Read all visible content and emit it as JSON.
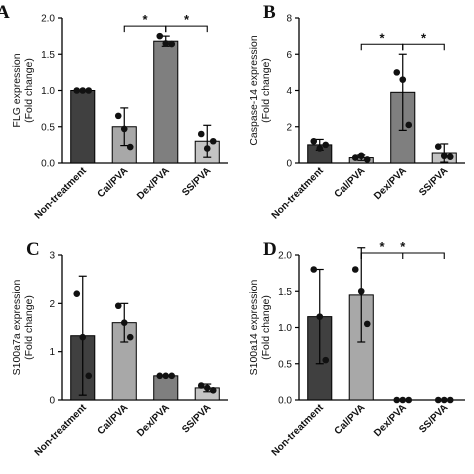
{
  "chart_data": [
    {
      "type": "bar",
      "panel": "A",
      "ylabel": [
        "FLG expression",
        "(Fold change)"
      ],
      "categories": [
        "Non-treatment",
        "Cal/PVA",
        "Dex/PVA",
        "SS/PVA"
      ],
      "colors": [
        "#404040",
        "#a8a8a8",
        "#7f7f7f",
        "#c4c4c4"
      ],
      "values": [
        1.0,
        0.5,
        1.68,
        0.3
      ],
      "errors": [
        0.0,
        0.26,
        0.07,
        0.22
      ],
      "points": [
        [
          1.0,
          1.0,
          1.0
        ],
        [
          0.65,
          0.47,
          0.22
        ],
        [
          1.75,
          1.65,
          1.64
        ],
        [
          0.4,
          0.2,
          0.3
        ]
      ],
      "ylim": [
        0,
        2
      ],
      "yticks": [
        {
          "value": 0,
          "label": "0.0"
        },
        {
          "value": 0.5,
          "label": "0.5"
        },
        {
          "value": 1,
          "label": "1.0"
        },
        {
          "value": 1.5,
          "label": "1.5"
        },
        {
          "value": 2,
          "label": "2.0"
        }
      ],
      "brackets": [
        {
          "from": 1,
          "to": 2,
          "text": "*"
        },
        {
          "from": 2,
          "to": 3,
          "text": "*"
        }
      ]
    },
    {
      "type": "bar",
      "panel": "B",
      "ylabel": [
        "Caspase-14 expression",
        "(Fold change)"
      ],
      "categories": [
        "Non-treatment",
        "Cal/PVA",
        "Dex/PVA",
        "SS/PVA"
      ],
      "colors": [
        "#404040",
        "#a8a8a8",
        "#7f7f7f",
        "#c4c4c4"
      ],
      "values": [
        1.0,
        0.3,
        3.9,
        0.55
      ],
      "errors": [
        0.3,
        0.15,
        2.1,
        0.5
      ],
      "points": [
        [
          1.2,
          0.8,
          1.0
        ],
        [
          0.3,
          0.4,
          0.2
        ],
        [
          5.0,
          4.6,
          2.1
        ],
        [
          0.9,
          0.4,
          0.35
        ]
      ],
      "ylim": [
        0,
        8
      ],
      "yticks": [
        0,
        2,
        4,
        6,
        8
      ],
      "brackets": [
        {
          "from": 1,
          "to": 2,
          "text": "*"
        },
        {
          "from": 2,
          "to": 3,
          "text": "*"
        }
      ]
    },
    {
      "type": "bar",
      "panel": "C",
      "ylabel": [
        "S100a7a expression",
        "(Fold change)"
      ],
      "categories": [
        "Non-treatment",
        "Cal/PVA",
        "Dex/PVA",
        "SS/PVA"
      ],
      "colors": [
        "#404040",
        "#a8a8a8",
        "#7f7f7f",
        "#c4c4c4"
      ],
      "values": [
        1.33,
        1.6,
        0.5,
        0.25
      ],
      "errors": [
        1.23,
        0.4,
        0.0,
        0.08
      ],
      "points": [
        [
          2.2,
          1.3,
          0.5
        ],
        [
          1.95,
          1.6,
          1.3
        ],
        [
          0.5,
          0.5,
          0.5
        ],
        [
          0.3,
          0.25,
          0.2
        ]
      ],
      "ylim": [
        0,
        3
      ],
      "yticks": [
        0,
        1,
        2,
        3
      ],
      "brackets": []
    },
    {
      "type": "bar",
      "panel": "D",
      "ylabel": [
        "S100a14 expression",
        "(Fold change)"
      ],
      "categories": [
        "Non-treatment",
        "Cal/PVA",
        "Dex/PVA",
        "SS/PVA"
      ],
      "colors": [
        "#404040",
        "#a8a8a8",
        "#7f7f7f",
        "#c4c4c4"
      ],
      "values": [
        1.15,
        1.45,
        0,
        0
      ],
      "errors": [
        0.65,
        0.65,
        0,
        0
      ],
      "points": [
        [
          1.8,
          1.15,
          0.55
        ],
        [
          1.8,
          1.5,
          1.05
        ],
        [
          0,
          0,
          0
        ],
        [
          0,
          0,
          0
        ]
      ],
      "ylim": [
        0,
        2
      ],
      "yticks": [
        {
          "value": 0,
          "label": "0.0"
        },
        {
          "value": 0.5,
          "label": "0.5"
        },
        {
          "value": 1,
          "label": "1.0"
        },
        {
          "value": 1.5,
          "label": "1.5"
        },
        {
          "value": 2,
          "label": "2.0"
        }
      ],
      "brackets": [
        {
          "from": 1,
          "to": 2,
          "text": "*"
        },
        {
          "from": 1,
          "to": 3,
          "text": "*"
        }
      ]
    }
  ]
}
